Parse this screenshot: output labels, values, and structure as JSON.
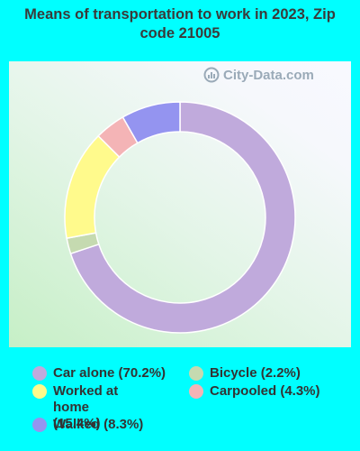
{
  "title": "Means of transportation to work in 2023, Zip code 21005",
  "watermark": "City-Data.com",
  "chart_data": {
    "type": "pie",
    "donut": true,
    "title": "Means of transportation to work in 2023, Zip code 21005",
    "series": [
      {
        "name": "Car alone",
        "value": 70.2,
        "color": "#C0AADC",
        "label": "Car alone (70.2%)"
      },
      {
        "name": "Bicycle",
        "value": 2.2,
        "color": "#C5DAB0",
        "label": "Bicycle (2.2%)"
      },
      {
        "name": "Worked at home",
        "value": 15.4,
        "color": "#FFFA8C",
        "label": "Worked at home (15.4%)"
      },
      {
        "name": "Carpooled",
        "value": 4.3,
        "color": "#F4B4B6",
        "label": "Carpooled (4.3%)"
      },
      {
        "name": "Walked",
        "value": 8.3,
        "color": "#9494F0",
        "label": "Walked (8.3%)"
      }
    ],
    "start_angle": "top",
    "direction": "clockwise",
    "legend_placement": "bottom"
  }
}
